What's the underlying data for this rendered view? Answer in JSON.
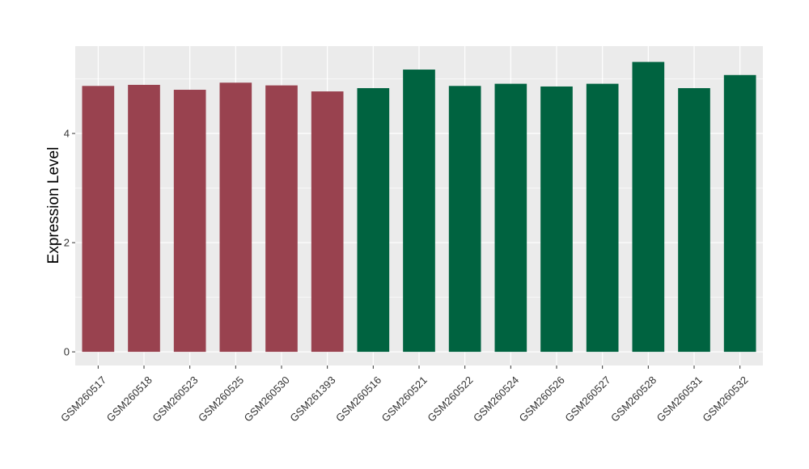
{
  "chart_data": {
    "type": "bar",
    "title": "",
    "xlabel": "",
    "ylabel": "Expression Level",
    "ylim": [
      -0.25,
      5.6
    ],
    "yticks": [
      0,
      2,
      4
    ],
    "grid": true,
    "legend": "none",
    "categories": [
      "GSM260517",
      "GSM260518",
      "GSM260523",
      "GSM260525",
      "GSM260530",
      "GSM261393",
      "GSM260516",
      "GSM260521",
      "GSM260522",
      "GSM260524",
      "GSM260526",
      "GSM260527",
      "GSM260528",
      "GSM260531",
      "GSM260532"
    ],
    "values": [
      4.87,
      4.89,
      4.8,
      4.93,
      4.88,
      4.77,
      4.83,
      5.17,
      4.87,
      4.91,
      4.86,
      4.91,
      5.31,
      4.83,
      5.07
    ],
    "groups": [
      0,
      0,
      0,
      0,
      0,
      0,
      1,
      1,
      1,
      1,
      1,
      1,
      1,
      1,
      1
    ],
    "group_colors": [
      "#99424f",
      "#006340"
    ],
    "panel_background": "#ebebeb",
    "grid_color": "#ffffff"
  }
}
